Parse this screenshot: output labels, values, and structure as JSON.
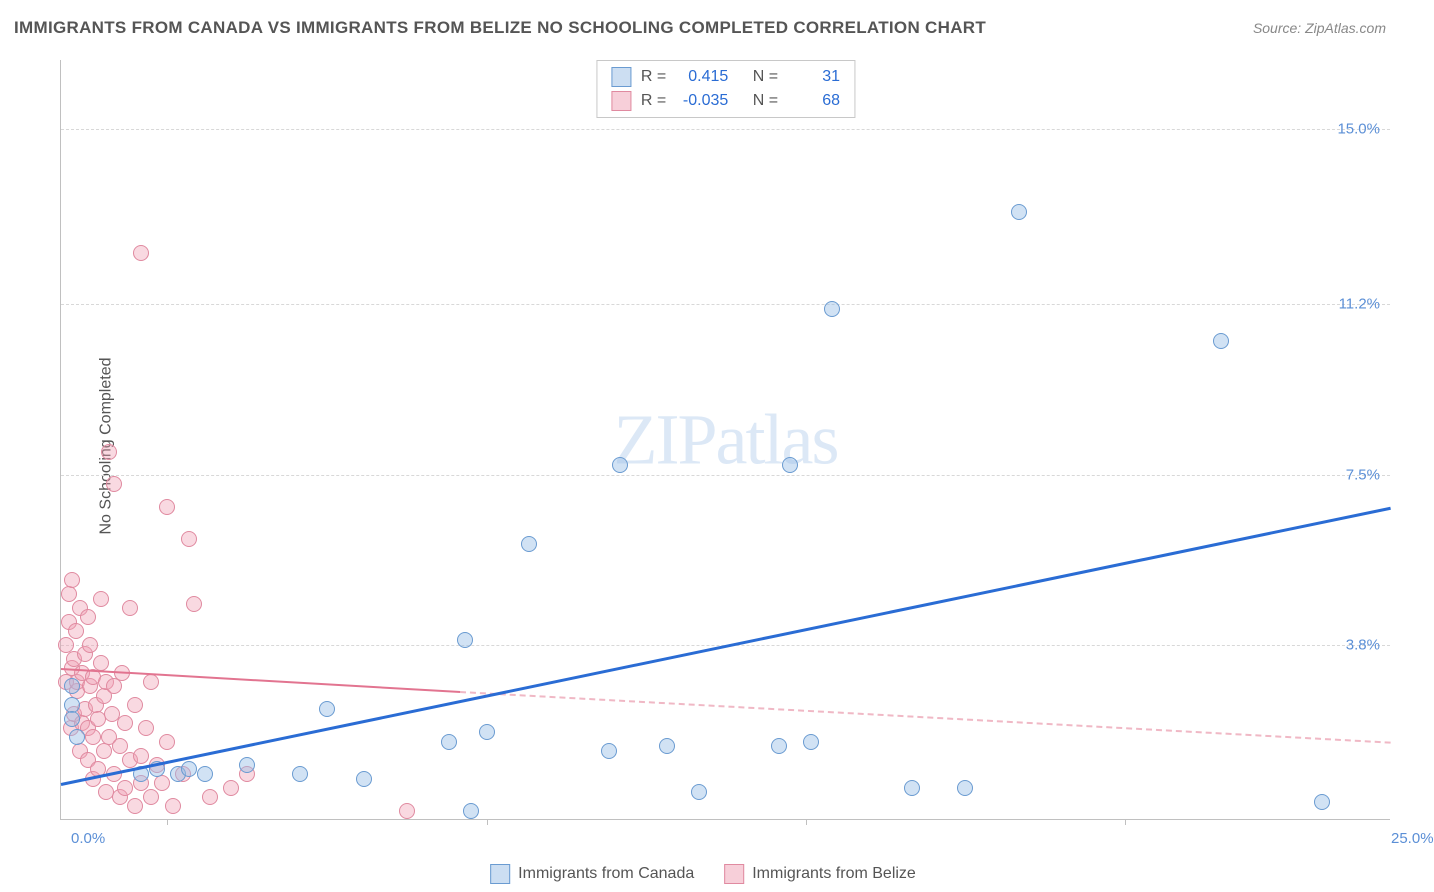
{
  "title": "IMMIGRANTS FROM CANADA VS IMMIGRANTS FROM BELIZE NO SCHOOLING COMPLETED CORRELATION CHART",
  "source": "Source: ZipAtlas.com",
  "yAxisLabel": "No Schooling Completed",
  "watermark_zip": "ZIP",
  "watermark_atlas": "atlas",
  "chart": {
    "type": "scatter",
    "xlim": [
      0,
      25
    ],
    "ylim": [
      0,
      16.5
    ],
    "x_ticks": [
      0.0,
      25.0
    ],
    "x_tick_labels": [
      "0.0%",
      "25.0%"
    ],
    "x_minor_ticks": [
      2.0,
      8.0,
      14.0,
      20.0
    ],
    "y_ticks": [
      3.8,
      7.5,
      11.2,
      15.0
    ],
    "y_tick_labels": [
      "3.8%",
      "7.5%",
      "11.2%",
      "15.0%"
    ],
    "background_color": "#ffffff",
    "grid_color": "#d8d8d8",
    "axis_color": "#c0c0c0",
    "tick_label_color": "#5b8fd6",
    "title_color": "#555555",
    "title_fontsize": 17,
    "label_fontsize": 16,
    "tick_fontsize": 15,
    "marker_size": 16,
    "series": {
      "canada": {
        "label": "Immigrants from Canada",
        "color_fill": "rgba(154,190,230,0.45)",
        "color_stroke": "#6a9bd1",
        "trend_color": "#2a6cd4",
        "trend_width": 3,
        "R": "0.415",
        "N": "31",
        "trend": {
          "x1": 0.0,
          "y1": 0.8,
          "x2": 25.0,
          "y2": 6.8
        },
        "points": [
          [
            0.2,
            2.5
          ],
          [
            0.2,
            2.9
          ],
          [
            0.2,
            2.2
          ],
          [
            0.3,
            1.8
          ],
          [
            1.5,
            1.0
          ],
          [
            1.8,
            1.1
          ],
          [
            2.2,
            1.0
          ],
          [
            2.4,
            1.1
          ],
          [
            2.7,
            1.0
          ],
          [
            3.5,
            1.2
          ],
          [
            4.5,
            1.0
          ],
          [
            5.0,
            2.4
          ],
          [
            5.7,
            0.9
          ],
          [
            7.3,
            1.7
          ],
          [
            7.6,
            3.9
          ],
          [
            7.7,
            0.2
          ],
          [
            8.0,
            1.9
          ],
          [
            8.8,
            6.0
          ],
          [
            10.3,
            1.5
          ],
          [
            10.5,
            7.7
          ],
          [
            11.4,
            1.6
          ],
          [
            12.0,
            0.6
          ],
          [
            13.5,
            1.6
          ],
          [
            13.7,
            7.7
          ],
          [
            14.1,
            1.7
          ],
          [
            14.5,
            11.1
          ],
          [
            16.0,
            0.7
          ],
          [
            17.0,
            0.7
          ],
          [
            18.0,
            13.2
          ],
          [
            21.8,
            10.4
          ],
          [
            23.7,
            0.4
          ]
        ]
      },
      "belize": {
        "label": "Immigrants from Belize",
        "color_fill": "rgba(240,160,180,0.4)",
        "color_stroke": "#e08aa0",
        "trend_color": "#e27490",
        "trend_dash_color": "#f0b8c5",
        "trend_width": 2.5,
        "R": "-0.035",
        "N": "68",
        "trend_solid": {
          "x1": 0.0,
          "y1": 3.3,
          "x2": 7.5,
          "y2": 2.8
        },
        "trend_dash": {
          "x1": 7.5,
          "y1": 2.8,
          "x2": 25.0,
          "y2": 1.7
        },
        "points": [
          [
            0.1,
            3.0
          ],
          [
            0.1,
            3.8
          ],
          [
            0.15,
            4.3
          ],
          [
            0.15,
            4.9
          ],
          [
            0.18,
            2.0
          ],
          [
            0.2,
            3.3
          ],
          [
            0.2,
            5.2
          ],
          [
            0.25,
            2.3
          ],
          [
            0.25,
            3.5
          ],
          [
            0.28,
            4.1
          ],
          [
            0.3,
            2.8
          ],
          [
            0.3,
            3.0
          ],
          [
            0.35,
            1.5
          ],
          [
            0.35,
            4.6
          ],
          [
            0.4,
            2.1
          ],
          [
            0.4,
            3.2
          ],
          [
            0.45,
            2.4
          ],
          [
            0.45,
            3.6
          ],
          [
            0.5,
            1.3
          ],
          [
            0.5,
            2.0
          ],
          [
            0.5,
            4.4
          ],
          [
            0.55,
            2.9
          ],
          [
            0.55,
            3.8
          ],
          [
            0.6,
            0.9
          ],
          [
            0.6,
            1.8
          ],
          [
            0.6,
            3.1
          ],
          [
            0.65,
            2.5
          ],
          [
            0.7,
            1.1
          ],
          [
            0.7,
            2.2
          ],
          [
            0.75,
            3.4
          ],
          [
            0.75,
            4.8
          ],
          [
            0.8,
            1.5
          ],
          [
            0.8,
            2.7
          ],
          [
            0.85,
            0.6
          ],
          [
            0.85,
            3.0
          ],
          [
            0.9,
            1.8
          ],
          [
            0.9,
            8.0
          ],
          [
            0.95,
            2.3
          ],
          [
            1.0,
            1.0
          ],
          [
            1.0,
            2.9
          ],
          [
            1.0,
            7.3
          ],
          [
            1.1,
            0.5
          ],
          [
            1.1,
            1.6
          ],
          [
            1.15,
            3.2
          ],
          [
            1.2,
            0.7
          ],
          [
            1.2,
            2.1
          ],
          [
            1.3,
            1.3
          ],
          [
            1.3,
            4.6
          ],
          [
            1.4,
            0.3
          ],
          [
            1.4,
            2.5
          ],
          [
            1.5,
            0.8
          ],
          [
            1.5,
            1.4
          ],
          [
            1.5,
            12.3
          ],
          [
            1.6,
            2.0
          ],
          [
            1.7,
            0.5
          ],
          [
            1.7,
            3.0
          ],
          [
            1.8,
            1.2
          ],
          [
            1.9,
            0.8
          ],
          [
            2.0,
            1.7
          ],
          [
            2.0,
            6.8
          ],
          [
            2.1,
            0.3
          ],
          [
            2.3,
            1.0
          ],
          [
            2.4,
            6.1
          ],
          [
            2.5,
            4.7
          ],
          [
            2.8,
            0.5
          ],
          [
            3.2,
            0.7
          ],
          [
            3.5,
            1.0
          ],
          [
            6.5,
            0.2
          ]
        ]
      }
    }
  },
  "statsLegend": {
    "rLabel": "R =",
    "nLabel": "N ="
  }
}
